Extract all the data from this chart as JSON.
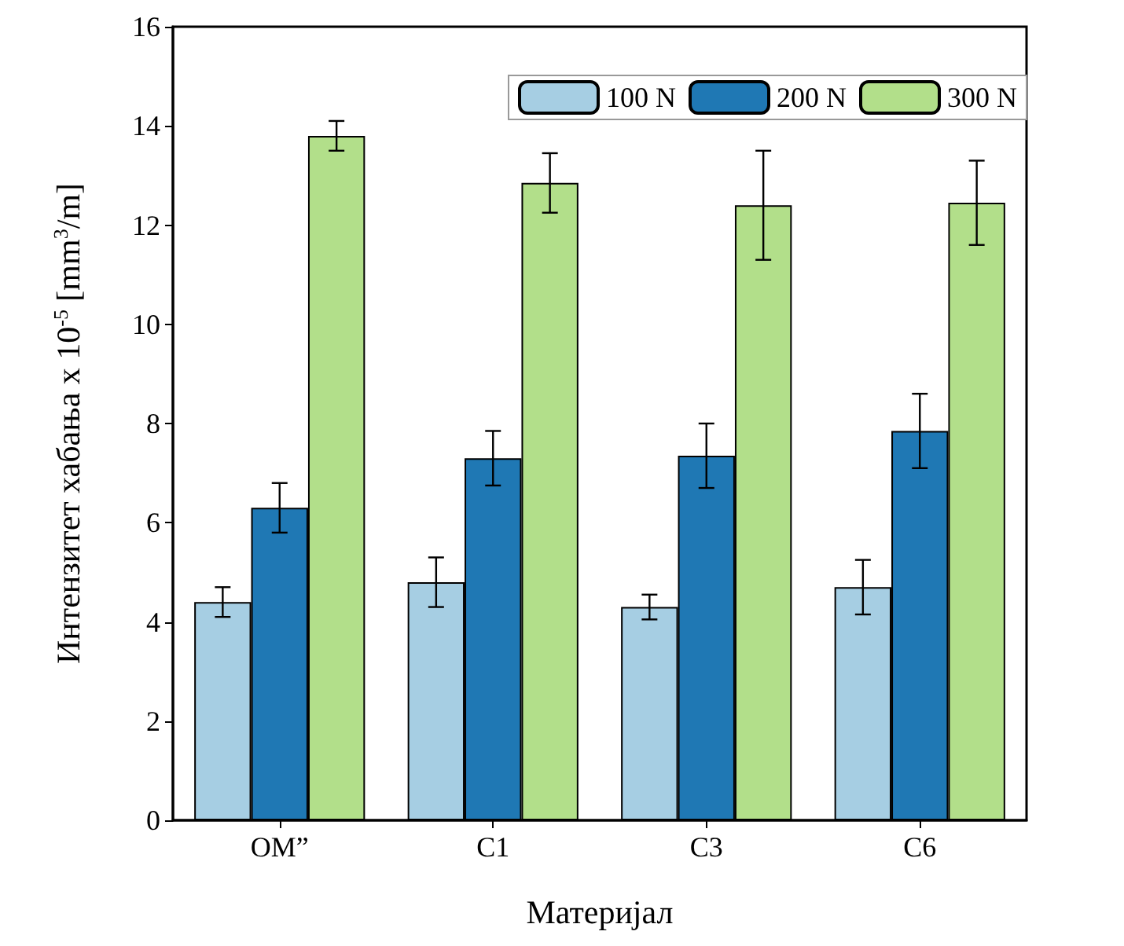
{
  "chart_data": {
    "type": "bar",
    "xlabel": "Материјал",
    "ylabel": "Интензитет хабања x 10$^{-5}$ [mm$^{3}$/m]",
    "categories": [
      "OM”",
      "C1",
      "C3",
      "C6"
    ],
    "series": [
      {
        "name": "100 N",
        "color": "#a6cee3",
        "values": [
          4.4,
          4.8,
          4.3,
          4.7
        ],
        "errors": [
          0.3,
          0.5,
          0.25,
          0.55
        ]
      },
      {
        "name": "200 N",
        "color": "#1f78b4",
        "values": [
          6.3,
          7.3,
          7.35,
          7.85
        ],
        "errors": [
          0.5,
          0.55,
          0.65,
          0.75
        ]
      },
      {
        "name": "300 N",
        "color": "#b2df8a",
        "values": [
          13.8,
          12.85,
          12.4,
          12.45
        ],
        "errors": [
          0.3,
          0.6,
          1.1,
          0.85
        ]
      }
    ],
    "ylim": [
      0,
      16
    ],
    "yticks": [
      0,
      2,
      4,
      6,
      8,
      10,
      12,
      14,
      16
    ],
    "grid": false,
    "legend": "top right"
  }
}
